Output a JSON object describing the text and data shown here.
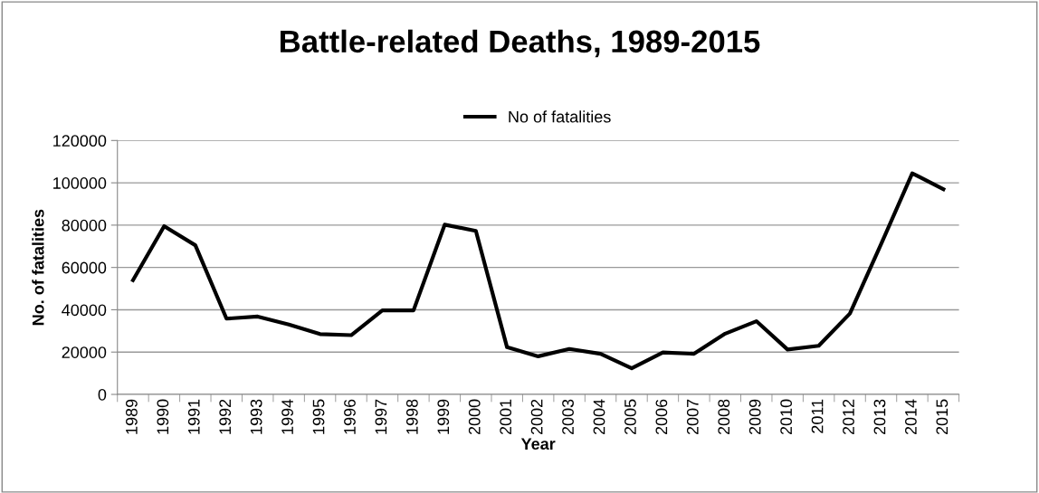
{
  "chart_data": {
    "type": "line",
    "title": "Battle-related Deaths, 1989-2015",
    "xlabel": "Year",
    "ylabel": "No. of fatalities",
    "categories": [
      "1989",
      "1990",
      "1991",
      "1992",
      "1993",
      "1994",
      "1995",
      "1996",
      "1997",
      "1998",
      "1999",
      "2000",
      "2001",
      "2002",
      "2003",
      "2004",
      "2005",
      "2006",
      "2007",
      "2008",
      "2009",
      "2010",
      "2011",
      "2012",
      "2013",
      "2014",
      "2015"
    ],
    "series": [
      {
        "name": "No of fatalities",
        "color": "#000000",
        "values": [
          54000,
          79500,
          70500,
          35800,
          36800,
          33000,
          28500,
          28000,
          39700,
          39700,
          80200,
          77300,
          22300,
          18000,
          21500,
          19200,
          12300,
          19800,
          19200,
          28700,
          34600,
          21200,
          23000,
          38200,
          71000,
          104500,
          97000
        ]
      }
    ],
    "ylim": [
      0,
      120000
    ],
    "yticks": [
      0,
      20000,
      40000,
      60000,
      80000,
      100000,
      120000
    ],
    "grid": "y",
    "legend": "top",
    "marker": "none",
    "line_style": "solid"
  }
}
